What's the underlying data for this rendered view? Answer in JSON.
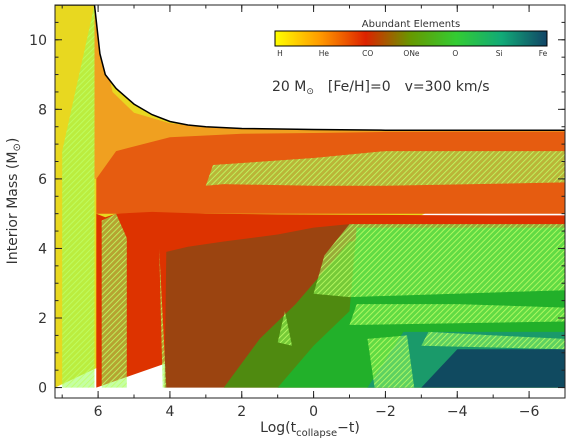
{
  "chart_data": {
    "type": "area",
    "title": "",
    "xlabel": {
      "main": "Log(t",
      "sub": "collapse",
      "tail": "−t)"
    },
    "ylabel": {
      "main": "Interior Mass (M",
      "sym": "⊙",
      "tail": ")"
    },
    "xlim": [
      7.2,
      -7.0
    ],
    "ylim": [
      -0.3,
      11.0
    ],
    "x_ticks": [
      6,
      4,
      2,
      0,
      -2,
      -4,
      -6
    ],
    "x_tick_labels": [
      "6",
      "4",
      "2",
      "0",
      "−2",
      "−4",
      "−6"
    ],
    "y_ticks": [
      0,
      2,
      4,
      6,
      8,
      10
    ],
    "y_tick_labels": [
      "0",
      "2",
      "4",
      "6",
      "8",
      "10"
    ],
    "annotation": {
      "mass": "20 M",
      "sym": "⊙",
      "metal": "[Fe/H]=0",
      "vel": "v=300 km/s"
    },
    "legend": {
      "title": "Abundant Elements",
      "entries": [
        "H",
        "He",
        "CO",
        "ONe",
        "O",
        "Si",
        "Fe"
      ],
      "colors": [
        "#ffff00",
        "#ff9900",
        "#dd2200",
        "#669900",
        "#33cc33",
        "#11aa77",
        "#114466"
      ]
    },
    "surface_boundary": {
      "x": [
        7.2,
        6.5,
        6.1,
        5.95,
        5.8,
        5.5,
        5.0,
        4.5,
        4.0,
        3.5,
        3.0,
        2.0,
        0.0,
        -2.0,
        -4.0,
        -6.0,
        -7.0
      ],
      "y": [
        11.0,
        11.0,
        11.0,
        9.6,
        9.0,
        8.6,
        8.15,
        7.85,
        7.65,
        7.55,
        7.5,
        7.45,
        7.42,
        7.4,
        7.4,
        7.4,
        7.4
      ]
    },
    "regions": [
      {
        "element": "H",
        "color": "#e8d820",
        "x": [
          7.2,
          6.1,
          5.95,
          5.8,
          5.5,
          5.0,
          4.5,
          4.0,
          3.5,
          3.0,
          2.0,
          0.0,
          -2.0,
          -4.0,
          -6.0,
          -7.0,
          -7.0,
          7.2
        ],
        "y": [
          11.0,
          11.0,
          9.6,
          9.0,
          8.6,
          8.15,
          7.85,
          7.65,
          7.55,
          7.5,
          7.45,
          7.42,
          7.4,
          7.4,
          7.4,
          7.4,
          6.9,
          0.0
        ]
      },
      {
        "element": "H-He envelope",
        "color": "#f0a020",
        "x": [
          6.1,
          5.6,
          5.0,
          4.0,
          3.0,
          2.0,
          0.0,
          -2.0,
          -4.0,
          -7.0,
          -7.0,
          6.1
        ],
        "y": [
          11.0,
          8.5,
          7.9,
          7.6,
          7.48,
          7.44,
          7.42,
          7.4,
          7.4,
          7.4,
          6.0,
          6.0
        ]
      },
      {
        "element": "He",
        "color": "#e65c10",
        "x": [
          6.05,
          5.5,
          4.0,
          2.0,
          0.0,
          -2.0,
          -4.0,
          -7.0,
          -7.0,
          6.05
        ],
        "y": [
          6.0,
          6.8,
          7.2,
          7.3,
          7.32,
          7.35,
          7.36,
          7.36,
          5.0,
          5.0
        ]
      },
      {
        "element": "He shell",
        "color": "#dd3300",
        "x": [
          6.05,
          5.8,
          5.5,
          4.5,
          3.0,
          1.0,
          -1.0,
          -3.0,
          -5.0,
          -7.0,
          -7.0,
          6.05
        ],
        "y": [
          5.0,
          4.9,
          5.0,
          5.05,
          5.0,
          4.98,
          4.97,
          4.96,
          4.95,
          4.95,
          4.7,
          0.0
        ]
      },
      {
        "element": "CO",
        "color": "#9b4410",
        "x": [
          4.15,
          4.1,
          3.5,
          2.5,
          1.0,
          0.0,
          -1.0,
          -7.0,
          -7.0,
          4.15
        ],
        "y": [
          0.0,
          3.9,
          4.05,
          4.2,
          4.4,
          4.6,
          4.7,
          4.7,
          0.0,
          0.0
        ]
      },
      {
        "element": "ONe",
        "color": "#4f8a10",
        "x": [
          2.5,
          1.5,
          0.5,
          -1.0,
          -7.0,
          -7.0,
          2.5
        ],
        "y": [
          0.0,
          1.4,
          2.4,
          4.2,
          4.2,
          0.0,
          0.0
        ]
      },
      {
        "element": "O",
        "color": "#22b02a",
        "x": [
          1.0,
          0.0,
          -1.0,
          -1.2,
          -7.0,
          -7.0,
          1.0
        ],
        "y": [
          0.0,
          1.2,
          2.2,
          4.6,
          4.6,
          0.0,
          0.0
        ]
      },
      {
        "element": "Si",
        "color": "#1a9a6a",
        "x": [
          -1.5,
          -2.5,
          -7.0,
          -7.0,
          -1.5
        ],
        "y": [
          0.0,
          1.6,
          1.6,
          0.0,
          0.0
        ]
      },
      {
        "element": "Fe",
        "color": "#104a60",
        "x": [
          -3.0,
          -4.0,
          -7.0,
          -7.0,
          -3.0
        ],
        "y": [
          0.0,
          1.1,
          1.1,
          0.0,
          0.0
        ]
      }
    ],
    "convective_zones": [
      {
        "x": [
          7.0,
          6.1,
          6.1,
          7.0
        ],
        "y": [
          6.8,
          11.0,
          0.0,
          0.0
        ]
      },
      {
        "x": [
          5.9,
          5.5,
          5.2,
          5.2,
          5.9
        ],
        "y": [
          4.8,
          5.0,
          4.3,
          0.0,
          0.0
        ]
      },
      {
        "x": [
          4.3,
          4.2,
          4.1,
          4.3
        ],
        "y": [
          4.0,
          0.0,
          0.0,
          4.0
        ]
      },
      {
        "x": [
          3.0,
          2.8,
          0.0,
          -2.0,
          -7.0,
          -7.0,
          -2.0,
          0.0,
          2.5,
          3.0
        ],
        "y": [
          5.8,
          6.4,
          6.6,
          6.8,
          6.8,
          5.9,
          5.8,
          5.8,
          5.85,
          5.8
        ]
      },
      {
        "x": [
          0.0,
          -0.3,
          -1.0,
          -7.0,
          -7.0,
          -1.0,
          0.0
        ],
        "y": [
          2.7,
          3.8,
          4.7,
          4.7,
          2.8,
          2.6,
          2.7
        ]
      },
      {
        "x": [
          1.0,
          0.8,
          0.6,
          1.0
        ],
        "y": [
          1.3,
          2.2,
          1.2,
          1.3
        ]
      },
      {
        "x": [
          -1.0,
          -1.2,
          -4.0,
          -7.0,
          -7.0,
          -1.0
        ],
        "y": [
          1.8,
          2.4,
          2.4,
          2.3,
          1.9,
          1.8
        ]
      },
      {
        "x": [
          -1.5,
          -1.7,
          -2.8,
          -2.6,
          -1.5
        ],
        "y": [
          1.4,
          0.0,
          0.0,
          1.5,
          1.4
        ]
      },
      {
        "x": [
          -3.0,
          -3.2,
          -5.0,
          -7.0,
          -7.0,
          -3.0
        ],
        "y": [
          1.2,
          1.6,
          1.5,
          1.4,
          1.1,
          1.2
        ]
      }
    ]
  }
}
